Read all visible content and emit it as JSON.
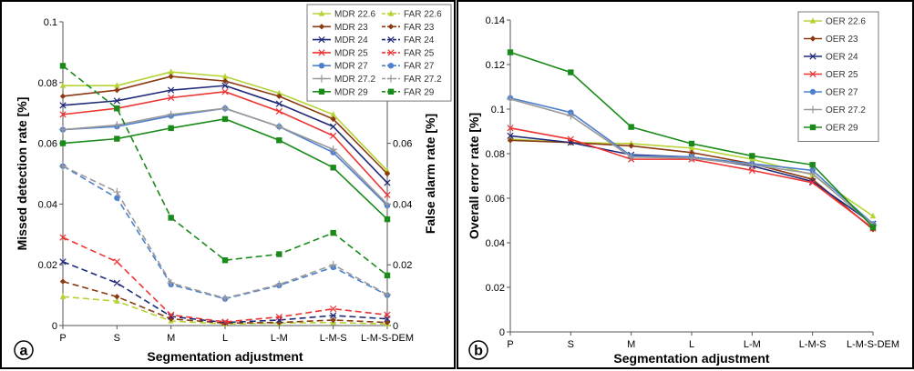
{
  "categories": [
    "P",
    "S",
    "M",
    "L",
    "L-M",
    "L-M-S",
    "L-M-S-DEM"
  ],
  "colors": {
    "22.6": "#b5d334",
    "23": "#8b3a12",
    "24": "#1f2a7a",
    "25": "#ee3333",
    "27": "#4f80d0",
    "27.2": "#999999",
    "29": "#1a8a1a"
  },
  "chart_data": [
    {
      "type": "line",
      "panel_label": "a",
      "xlabel": "Segmentation adjustment",
      "ylabel": "Missed detection rate [%]",
      "ylabel_right": "False alarm rate [%]",
      "ylim": [
        0,
        0.1
      ],
      "yticks": [
        "0",
        "0.02",
        "0.04",
        "0.06",
        "0.08",
        "0.1"
      ],
      "ylim_right": [
        0,
        0.1
      ],
      "yticks_right": [
        "0",
        "0.02",
        "0.04",
        "0.06"
      ],
      "legend_position": "top-right",
      "legend_labels": [
        "MDR 22.6",
        "FAR 22.6",
        "MDR 23",
        "FAR 23",
        "MDR 24",
        "FAR 24",
        "MDR 25",
        "FAR 25",
        "MDR 27",
        "FAR 27",
        "MDR 27.2",
        "FAR 27.2",
        "MDR 29",
        "FAR 29"
      ],
      "series": [
        {
          "name": "MDR 22.6",
          "key": "22.6",
          "style": "solid",
          "values": [
            0.079,
            0.079,
            0.0835,
            0.082,
            0.0765,
            0.0695,
            0.051
          ]
        },
        {
          "name": "MDR 23",
          "key": "23",
          "style": "solid",
          "values": [
            0.0755,
            0.0775,
            0.082,
            0.0805,
            0.0755,
            0.068,
            0.05
          ]
        },
        {
          "name": "MDR 24",
          "key": "24",
          "style": "solid",
          "values": [
            0.0725,
            0.074,
            0.0775,
            0.079,
            0.073,
            0.0655,
            0.047
          ]
        },
        {
          "name": "MDR 25",
          "key": "25",
          "style": "solid",
          "values": [
            0.0695,
            0.0715,
            0.075,
            0.077,
            0.0705,
            0.0625,
            0.043
          ]
        },
        {
          "name": "MDR 27",
          "key": "27",
          "style": "solid",
          "values": [
            0.0645,
            0.0655,
            0.069,
            0.0715,
            0.0655,
            0.057,
            0.0395
          ]
        },
        {
          "name": "MDR 27.2",
          "key": "27.2",
          "style": "solid",
          "values": [
            0.0645,
            0.066,
            0.0695,
            0.0715,
            0.0655,
            0.058,
            0.04
          ]
        },
        {
          "name": "MDR 29",
          "key": "29",
          "style": "solid",
          "values": [
            0.06,
            0.0615,
            0.065,
            0.068,
            0.061,
            0.052,
            0.035
          ]
        },
        {
          "name": "FAR 22.6",
          "key": "22.6",
          "style": "dashed",
          "values": [
            0.0095,
            0.008,
            0.0015,
            0.0005,
            0.0008,
            0.001,
            0.0005
          ]
        },
        {
          "name": "FAR 23",
          "key": "23",
          "style": "dashed",
          "values": [
            0.0145,
            0.0095,
            0.0022,
            0.0008,
            0.001,
            0.0018,
            0.001
          ]
        },
        {
          "name": "FAR 24",
          "key": "24",
          "style": "dashed",
          "values": [
            0.021,
            0.014,
            0.003,
            0.001,
            0.0018,
            0.0033,
            0.0022
          ]
        },
        {
          "name": "FAR 25",
          "key": "25",
          "style": "dashed",
          "values": [
            0.029,
            0.021,
            0.0035,
            0.0012,
            0.0028,
            0.0055,
            0.0035
          ]
        },
        {
          "name": "FAR 27",
          "key": "27",
          "style": "dashed",
          "values": [
            0.0525,
            0.042,
            0.0135,
            0.0088,
            0.0132,
            0.0192,
            0.01
          ]
        },
        {
          "name": "FAR 27.2",
          "key": "27.2",
          "style": "dashed",
          "values": [
            0.0525,
            0.044,
            0.014,
            0.009,
            0.0135,
            0.02,
            0.0102
          ]
        },
        {
          "name": "FAR 29",
          "key": "29",
          "style": "dashed",
          "values": [
            0.0855,
            0.0715,
            0.0355,
            0.0215,
            0.0235,
            0.0305,
            0.0165
          ]
        }
      ]
    },
    {
      "type": "line",
      "panel_label": "b",
      "xlabel": "Segmentation adjustment",
      "ylabel": "Overall error rate [%]",
      "ylim": [
        0,
        0.14
      ],
      "yticks": [
        "0",
        "0.02",
        "0.04",
        "0.06",
        "0.08",
        "0.1",
        "0.12",
        "0.14"
      ],
      "legend_position": "top-right",
      "series": [
        {
          "name": "OER 22.6",
          "key": "22.6",
          "style": "solid",
          "values": [
            0.0865,
            0.085,
            0.0845,
            0.0825,
            0.0775,
            0.0705,
            0.052
          ]
        },
        {
          "name": "OER 23",
          "key": "23",
          "style": "solid",
          "values": [
            0.086,
            0.085,
            0.0835,
            0.0805,
            0.0755,
            0.0685,
            0.046
          ]
        },
        {
          "name": "OER 24",
          "key": "24",
          "style": "solid",
          "values": [
            0.088,
            0.085,
            0.0795,
            0.0785,
            0.0745,
            0.0675,
            0.0485
          ]
        },
        {
          "name": "OER 25",
          "key": "25",
          "style": "solid",
          "values": [
            0.0915,
            0.0865,
            0.0775,
            0.0775,
            0.0725,
            0.067,
            0.0465
          ]
        },
        {
          "name": "OER 27",
          "key": "27",
          "style": "solid",
          "values": [
            0.105,
            0.0985,
            0.079,
            0.0785,
            0.0755,
            0.0725,
            0.0485
          ]
        },
        {
          "name": "OER 27.2",
          "key": "27.2",
          "style": "solid",
          "values": [
            0.1045,
            0.097,
            0.0785,
            0.078,
            0.075,
            0.071,
            0.048
          ]
        },
        {
          "name": "OER 29",
          "key": "29",
          "style": "solid",
          "values": [
            0.1255,
            0.1165,
            0.092,
            0.0845,
            0.079,
            0.075,
            0.047
          ]
        }
      ]
    }
  ]
}
